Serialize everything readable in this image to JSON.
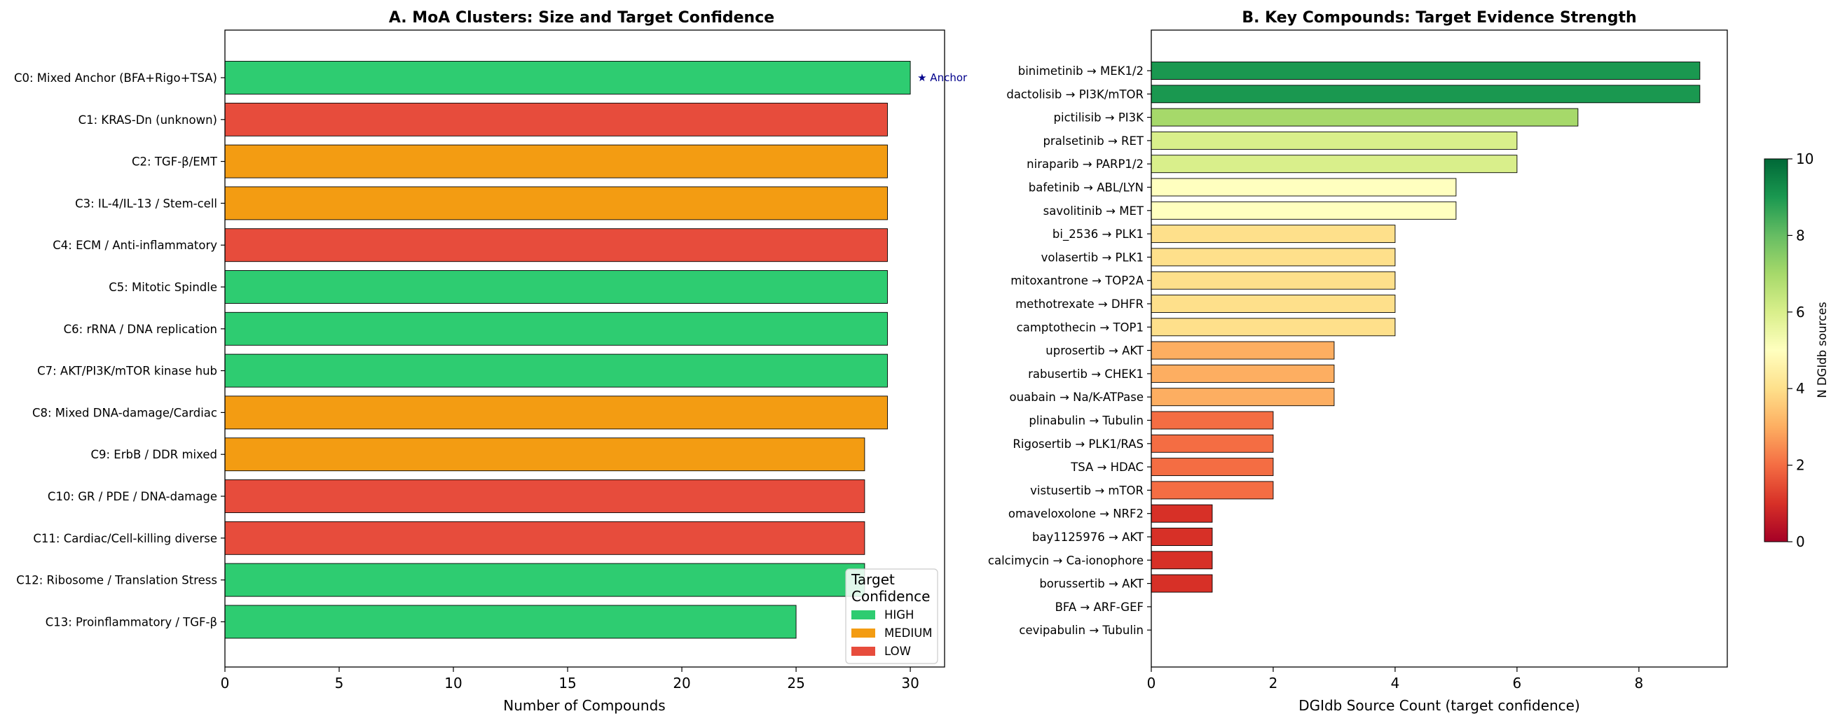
{
  "chart_data": [
    {
      "type": "bar",
      "orientation": "horizontal",
      "title": "A. MoA Clusters: Size and Target Confidence",
      "xlabel": "Number of Compounds",
      "ylabel": "",
      "xlim": [
        0,
        31.5
      ],
      "xticks": [
        "0",
        "5",
        "10",
        "15",
        "20",
        "25",
        "30"
      ],
      "grid": false,
      "categories": [
        "C0: Mixed Anchor (BFA+Rigo+TSA)",
        "C1: KRAS-Dn (unknown)",
        "C2: TGF-β/EMT",
        "C3: IL-4/IL-13 / Stem-cell",
        "C4: ECM / Anti-inflammatory",
        "C5: Mitotic Spindle",
        "C6: rRNA / DNA replication",
        "C7: AKT/PI3K/mTOR kinase hub",
        "C8: Mixed DNA-damage/Cardiac",
        "C9: ErbB / DDR mixed",
        "C10: GR / PDE / DNA-damage",
        "C11: Cardiac/Cell-killing diverse",
        "C12: Ribosome / Translation Stress",
        "C13: Proinflammatory / TGF-β"
      ],
      "values": [
        30,
        29,
        29,
        29,
        29,
        29,
        29,
        29,
        29,
        28,
        28,
        28,
        28,
        25
      ],
      "confidence": [
        "HIGH",
        "LOW",
        "MEDIUM",
        "MEDIUM",
        "LOW",
        "HIGH",
        "HIGH",
        "HIGH",
        "MEDIUM",
        "MEDIUM",
        "LOW",
        "LOW",
        "HIGH",
        "HIGH"
      ],
      "annotation": {
        "text": "★ Anchor",
        "category_index": 0
      },
      "legend": {
        "title_lines": [
          "Target",
          "Confidence"
        ],
        "placement": "lower-right",
        "entries": [
          {
            "label": "HIGH",
            "color": "#2ecc71"
          },
          {
            "label": "MEDIUM",
            "color": "#f39c12"
          },
          {
            "label": "LOW",
            "color": "#e74c3c"
          }
        ]
      }
    },
    {
      "type": "bar",
      "orientation": "horizontal",
      "title": "B. Key Compounds: Target Evidence Strength",
      "xlabel": "DGIdb Source Count (target confidence)",
      "ylabel": "",
      "xlim": [
        0,
        9.45
      ],
      "xticks": [
        "0",
        "2",
        "4",
        "6",
        "8"
      ],
      "grid": false,
      "colormap": "RdYlGn",
      "categories": [
        "binimetinib → MEK1/2",
        "dactolisib → PI3K/mTOR",
        "pictilisib → PI3K",
        "pralsetinib → RET",
        "niraparib → PARP1/2",
        "bafetinib → ABL/LYN",
        "savolitinib → MET",
        "bi_2536 → PLK1",
        "volasertib → PLK1",
        "mitoxantrone → TOP2A",
        "methotrexate → DHFR",
        "camptothecin → TOP1",
        "uprosertib → AKT",
        "rabusertib → CHEK1",
        "ouabain → Na/K-ATPase",
        "plinabulin → Tubulin",
        "Rigosertib → PLK1/RAS",
        "TSA → HDAC",
        "vistusertib → mTOR",
        "omaveloxolone → NRF2",
        "bay1125976 → AKT",
        "calcimycin → Ca-ionophore",
        "borussertib → AKT",
        "BFA → ARF-GEF",
        "cevipabulin → Tubulin"
      ],
      "values": [
        9,
        9,
        7,
        6,
        6,
        5,
        5,
        4,
        4,
        4,
        4,
        4,
        3,
        3,
        3,
        2,
        2,
        2,
        2,
        1,
        1,
        1,
        1,
        0,
        0
      ],
      "colorbar": {
        "label": "N DGIdb sources",
        "range": [
          0,
          10
        ],
        "ticks": [
          "0",
          "2",
          "4",
          "6",
          "8",
          "10"
        ],
        "stops": [
          "#a50026",
          "#d73027",
          "#f46d43",
          "#fdae61",
          "#fee08b",
          "#ffffbf",
          "#d9ef8b",
          "#a6d96a",
          "#66bd63",
          "#1a9850",
          "#006837"
        ]
      }
    }
  ]
}
